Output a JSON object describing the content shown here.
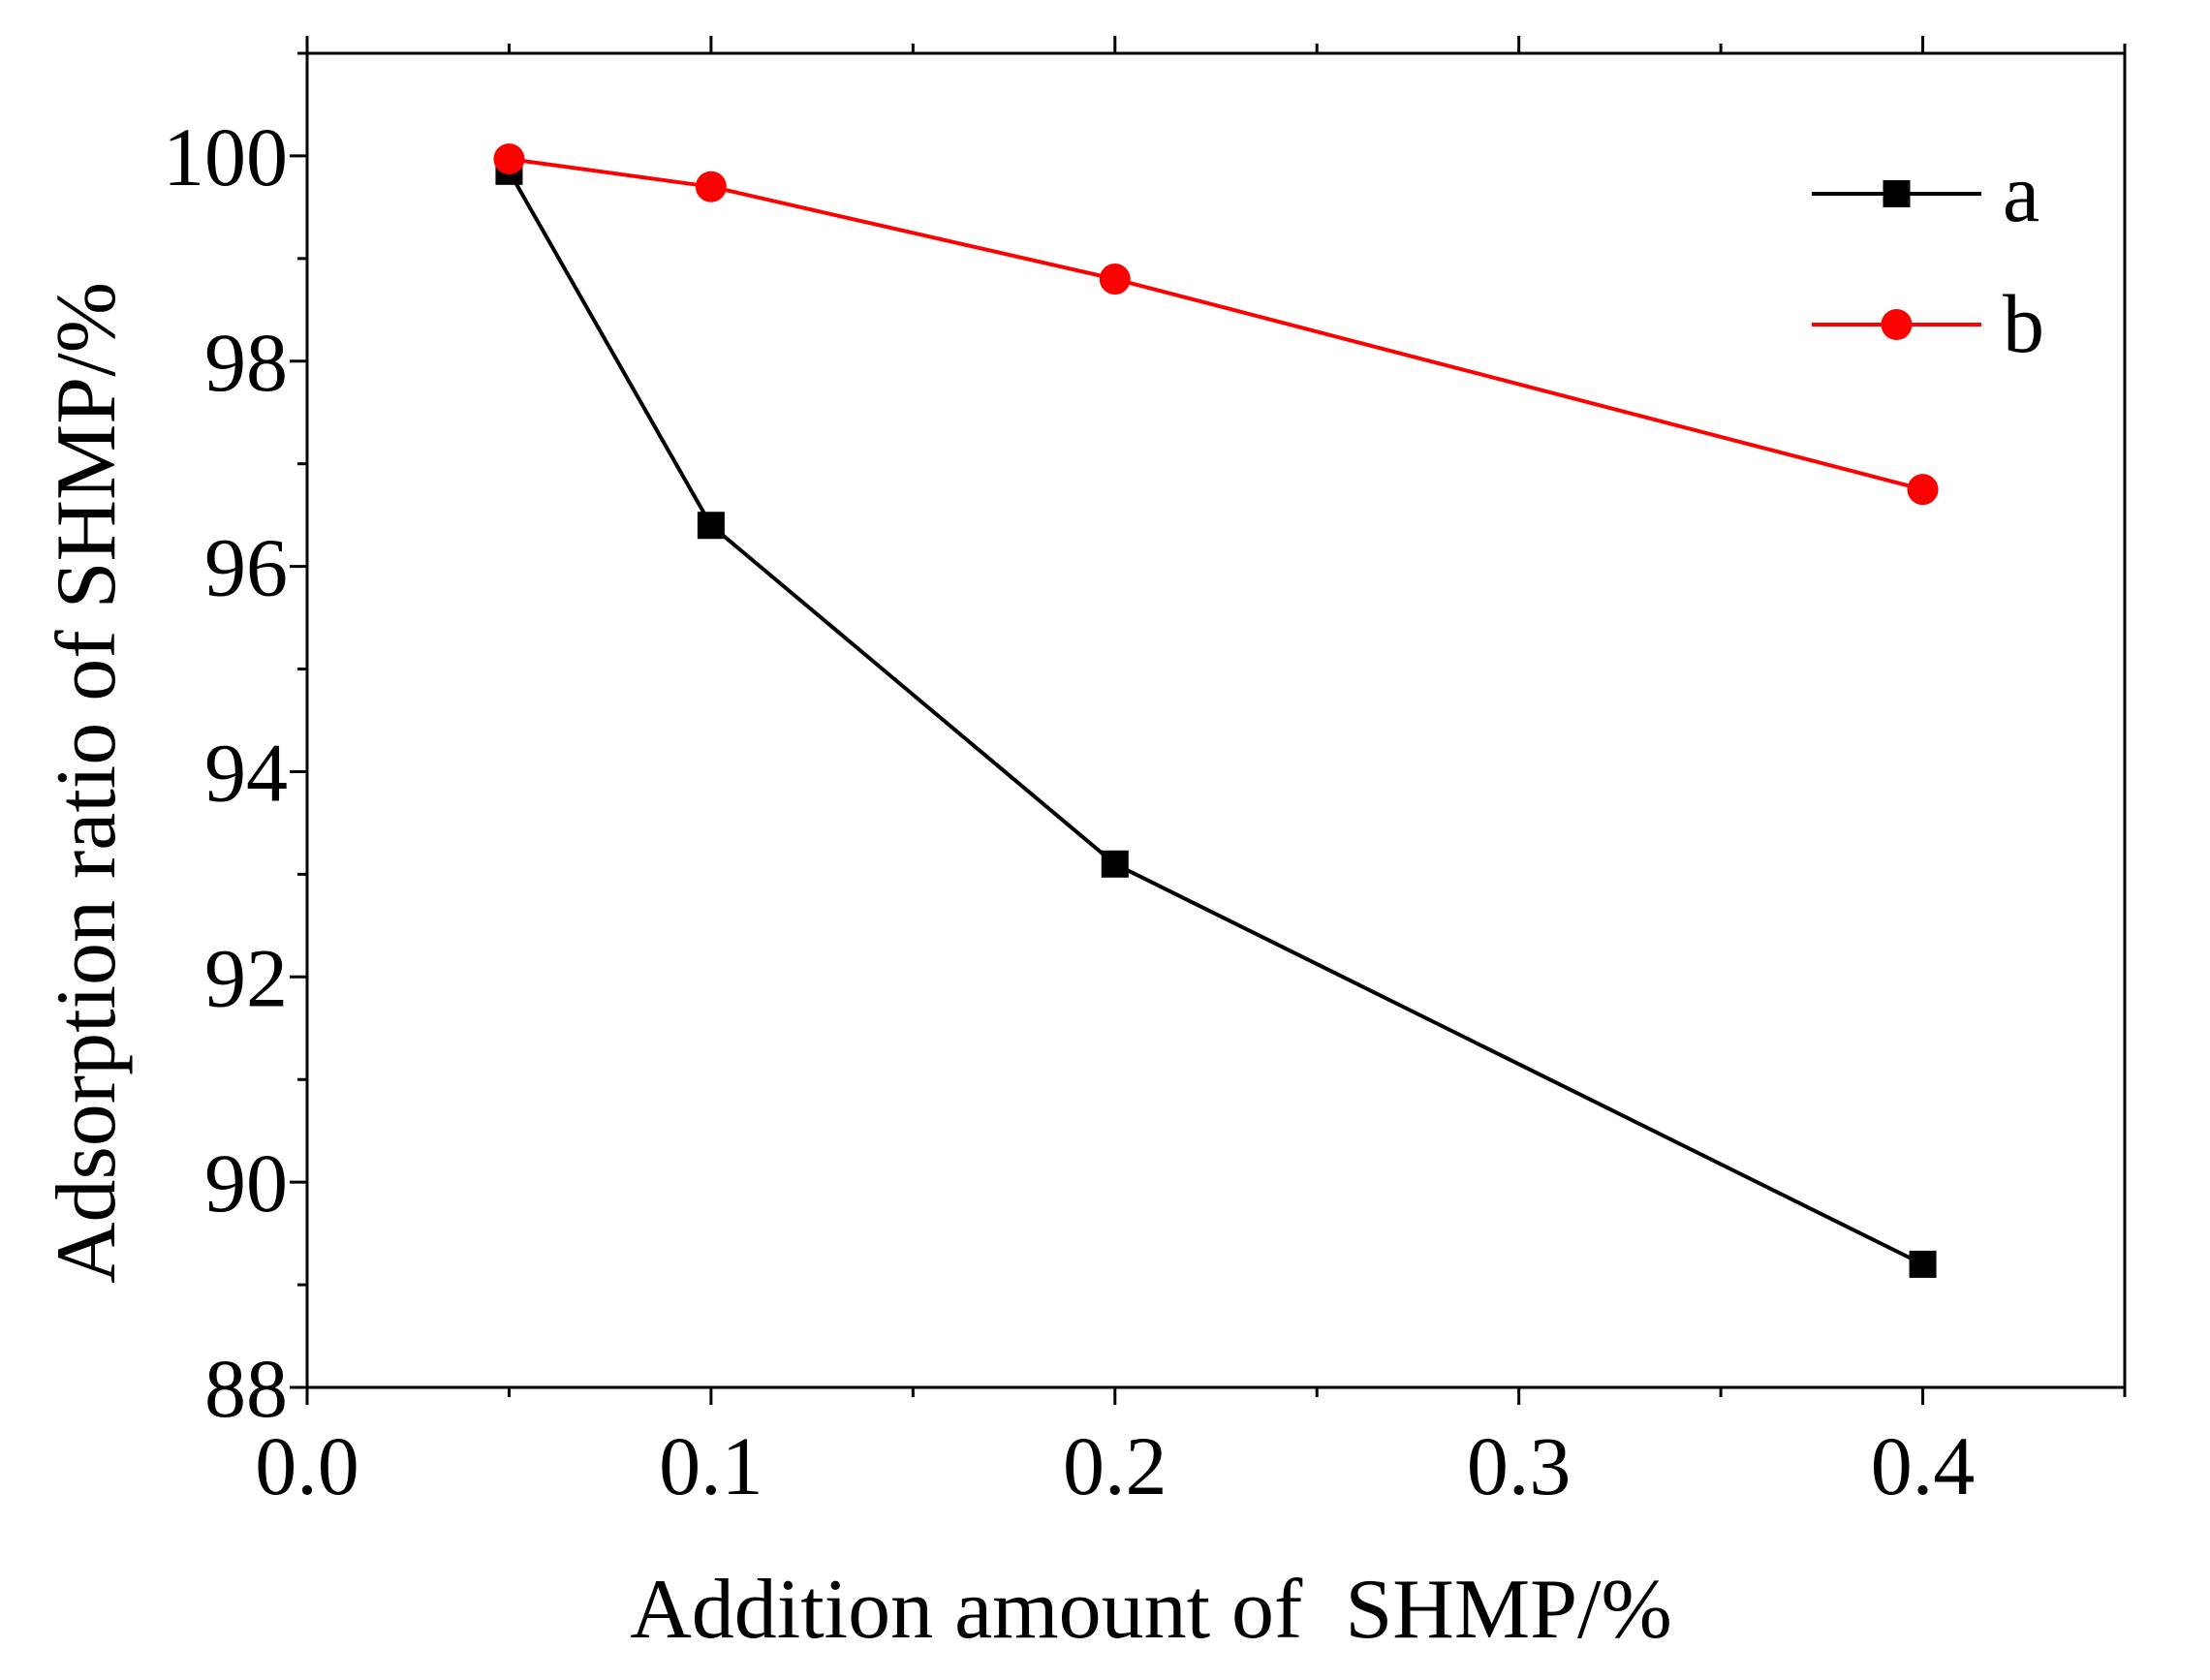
{
  "chart_data": {
    "type": "line",
    "title": "",
    "xlabel": "Addition amount of  SHMP/%",
    "ylabel": "Adsorption ratio of SHMP/%",
    "xlim": [
      0.0,
      0.45
    ],
    "ylim": [
      88,
      101
    ],
    "x_ticks": [
      0.0,
      0.1,
      0.2,
      0.3,
      0.4
    ],
    "x_tick_labels": [
      "0.0",
      "0.1",
      "0.2",
      "0.3",
      "0.4"
    ],
    "x_minor_ticks": [
      0.05,
      0.15,
      0.25,
      0.35,
      0.45
    ],
    "y_ticks": [
      88,
      90,
      92,
      94,
      96,
      98,
      100
    ],
    "y_tick_labels": [
      "88",
      "90",
      "92",
      "94",
      "96",
      "98",
      "100"
    ],
    "y_minor_ticks": [
      89,
      91,
      93,
      95,
      97,
      99,
      101
    ],
    "grid": false,
    "legend_position": "top-right",
    "series": [
      {
        "name": "a",
        "color": "#000000",
        "marker": "square",
        "x": [
          0.05,
          0.1,
          0.2,
          0.4
        ],
        "values": [
          99.85,
          96.4,
          93.1,
          89.2
        ]
      },
      {
        "name": "b",
        "color": "#ff0000",
        "marker": "circle",
        "x": [
          0.05,
          0.1,
          0.2,
          0.4
        ],
        "values": [
          99.97,
          99.7,
          98.8,
          96.75
        ]
      }
    ]
  }
}
